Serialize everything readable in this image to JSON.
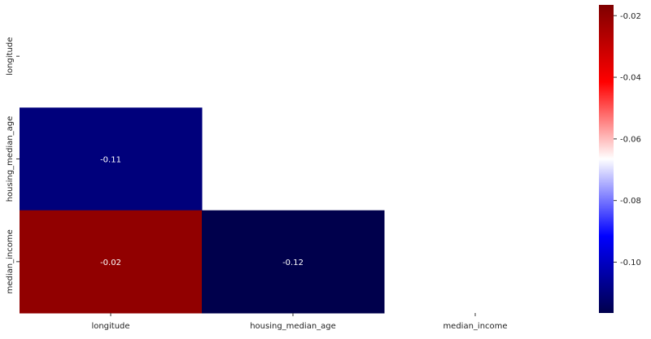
{
  "chart_data": {
    "type": "heatmap",
    "title": "",
    "rows": [
      "longitude",
      "housing_median_age",
      "median_income"
    ],
    "columns": [
      "longitude",
      "housing_median_age",
      "median_income"
    ],
    "values": [
      [
        null,
        null,
        null
      ],
      [
        -0.11,
        null,
        null
      ],
      [
        -0.02,
        -0.12,
        null
      ]
    ],
    "value_labels": [
      [
        null,
        null,
        null
      ],
      [
        "-0.11",
        null,
        null
      ],
      [
        "-0.02",
        "-0.12",
        null
      ]
    ],
    "mask": "upper-triangle including diagonal",
    "colormap": "seismic",
    "colorbar": {
      "vmin": -0.1165,
      "vmax": -0.0165,
      "ticks": [
        -0.02,
        -0.04,
        -0.06,
        -0.08,
        -0.1
      ],
      "tick_labels": [
        "-0.02",
        "-0.04",
        "-0.06",
        "-0.08",
        "-0.10"
      ]
    },
    "colors": {
      "low": "#00004c",
      "mid_low": "#0000ff",
      "mid": "#ffffff",
      "mid_high": "#ff0000",
      "high": "#7f0000"
    }
  }
}
